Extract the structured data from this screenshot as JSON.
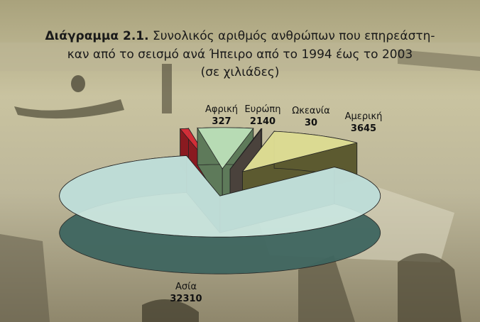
{
  "chart_data": {
    "type": "pie3d",
    "title_number": "Διάγραμμα 2.1.",
    "title_lines": [
      "Συνολικός αριθμός ανθρώπων που επηρεάστη-",
      "καν από το σεισμό ανά Ήπειρο από το 1994 έως το 2003"
    ],
    "subtitle": "(σε χιλιάδες)",
    "categories": [
      "Αφρική",
      "Ευρώπη",
      "Ωκεανία",
      "Αμερική",
      "Ασία"
    ],
    "values": [
      327,
      2140,
      30,
      3645,
      32310
    ],
    "colors": [
      "#d8303a",
      "#bfe4bc",
      "#8c7f74",
      "#e6e59a",
      "#c9e6e0"
    ],
    "side_colors": [
      "#8a1a20",
      "#5e7a5a",
      "#4a423c",
      "#5c5a30",
      "#3f6660"
    ]
  }
}
